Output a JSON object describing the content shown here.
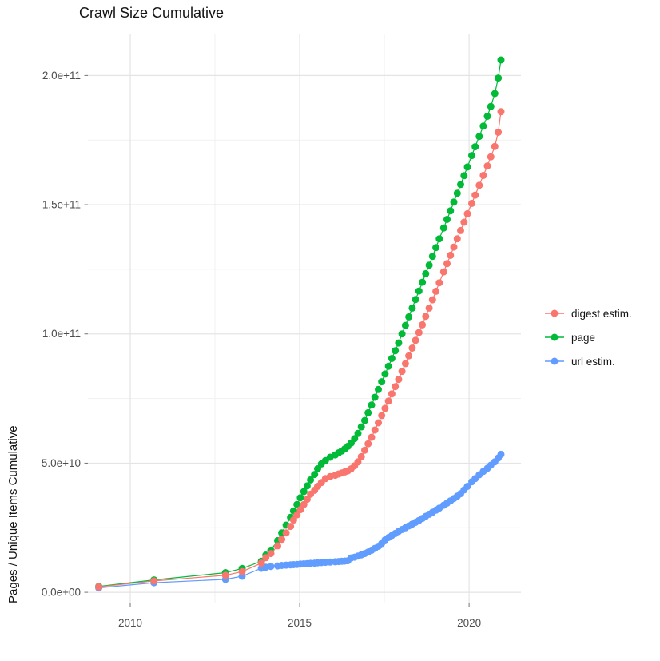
{
  "chart_data": {
    "type": "scatter",
    "points_connected": true,
    "title": "Crawl Size Cumulative",
    "xlabel": "",
    "ylabel": "Pages / Unique Items Cumulative",
    "note_units": "values_e9 are in billions (1e9) of pages/items; x is decimal year",
    "xlim": [
      2008.75,
      2021.53
    ],
    "ylim_e9": [
      -4.3,
      216.2
    ],
    "grid": {
      "major_color": "#e4e4e4",
      "minor_color": "#f1f1f1",
      "tick_color": "#737373"
    },
    "legend_position": "right",
    "x_ticks": {
      "values": [
        2010,
        2015,
        2020
      ],
      "labels": [
        "2010",
        "2015",
        "2020"
      ],
      "minor": [
        2012.5,
        2017.5
      ]
    },
    "y_ticks": {
      "values_e9": [
        0,
        50,
        100,
        150,
        200
      ],
      "labels": [
        "0.0e+00",
        "5.0e+10",
        "1.0e+11",
        "1.5e+11",
        "2.0e+11"
      ],
      "minor_e9": [
        25,
        75,
        125,
        175
      ]
    },
    "x": [
      2009.07,
      2010.7,
      2012.81,
      2013.3,
      2013.87,
      2014.0,
      2014.15,
      2014.35,
      2014.47,
      2014.6,
      2014.73,
      2014.82,
      2014.92,
      2015.02,
      2015.12,
      2015.22,
      2015.32,
      2015.44,
      2015.53,
      2015.64,
      2015.76,
      2015.9,
      2016.05,
      2016.15,
      2016.24,
      2016.33,
      2016.42,
      2016.52,
      2016.62,
      2016.72,
      2016.82,
      2016.92,
      2017.02,
      2017.12,
      2017.22,
      2017.32,
      2017.42,
      2017.52,
      2017.62,
      2017.72,
      2017.82,
      2017.92,
      2018.02,
      2018.12,
      2018.22,
      2018.32,
      2018.42,
      2018.52,
      2018.62,
      2018.72,
      2018.82,
      2018.92,
      2019.02,
      2019.12,
      2019.25,
      2019.35,
      2019.45,
      2019.55,
      2019.65,
      2019.75,
      2019.85,
      2019.95,
      2020.08,
      2020.18,
      2020.3,
      2020.42,
      2020.54,
      2020.64,
      2020.76,
      2020.86,
      2020.94
    ],
    "series": [
      {
        "name": "digest estim.",
        "color": "#F8766D",
        "values_e9": [
          2.1,
          4.4,
          6.6,
          8.0,
          11.3,
          13.4,
          15.0,
          18.0,
          20.5,
          23.0,
          25.5,
          28.0,
          30.0,
          32.0,
          34.0,
          36.0,
          38.0,
          39.5,
          41.0,
          42.5,
          44.0,
          44.8,
          45.3,
          45.8,
          46.2,
          46.6,
          47.0,
          47.8,
          49.0,
          50.5,
          52.5,
          55.0,
          57.5,
          60.0,
          62.8,
          65.6,
          68.4,
          71.2,
          74.0,
          76.8,
          79.6,
          82.4,
          85.5,
          88.5,
          91.5,
          94.5,
          97.5,
          100.5,
          103.5,
          106.8,
          110.0,
          113.2,
          116.5,
          119.8,
          124.0,
          127.2,
          130.4,
          133.6,
          136.8,
          140.0,
          143.2,
          146.5,
          150.5,
          153.7,
          157.5,
          161.3,
          165.0,
          168.5,
          172.5,
          178.0,
          186.0
        ]
      },
      {
        "name": "page",
        "color": "#00BA38",
        "values_e9": [
          2.3,
          4.8,
          7.6,
          9.2,
          12.0,
          14.4,
          16.3,
          20.0,
          23.0,
          26.0,
          29.0,
          31.5,
          34.0,
          36.6,
          39.0,
          41.2,
          43.5,
          45.6,
          47.8,
          49.7,
          51.0,
          52.3,
          53.2,
          54.0,
          54.7,
          55.5,
          56.5,
          57.8,
          59.5,
          61.5,
          64.0,
          66.5,
          69.5,
          72.5,
          75.5,
          78.5,
          81.5,
          84.5,
          87.5,
          90.5,
          93.5,
          96.5,
          100.0,
          103.3,
          106.6,
          110.0,
          113.3,
          116.6,
          120.0,
          123.3,
          126.6,
          130.0,
          133.4,
          136.8,
          141.0,
          144.3,
          147.6,
          151.0,
          154.4,
          157.8,
          161.2,
          164.6,
          169.0,
          172.4,
          176.4,
          180.4,
          184.2,
          188.0,
          193.0,
          199.0,
          206.0
        ]
      },
      {
        "name": "url estim.",
        "color": "#619CFF",
        "values_e9": [
          1.7,
          3.7,
          5.0,
          6.2,
          9.3,
          9.7,
          10.0,
          10.2,
          10.4,
          10.5,
          10.6,
          10.7,
          10.8,
          10.9,
          11.0,
          11.1,
          11.2,
          11.3,
          11.4,
          11.5,
          11.6,
          11.7,
          11.8,
          11.9,
          12.0,
          12.1,
          12.2,
          13.3,
          13.6,
          14.0,
          14.5,
          15.0,
          15.6,
          16.3,
          17.0,
          17.8,
          18.9,
          20.3,
          21.2,
          22.0,
          22.8,
          23.6,
          24.3,
          25.0,
          25.7,
          26.4,
          27.1,
          27.8,
          28.6,
          29.4,
          30.2,
          31.0,
          31.8,
          32.6,
          33.7,
          34.5,
          35.4,
          36.3,
          37.2,
          38.2,
          39.6,
          41.0,
          42.8,
          44.0,
          45.5,
          46.8,
          48.0,
          49.2,
          50.5,
          52.0,
          53.4
        ]
      }
    ]
  }
}
